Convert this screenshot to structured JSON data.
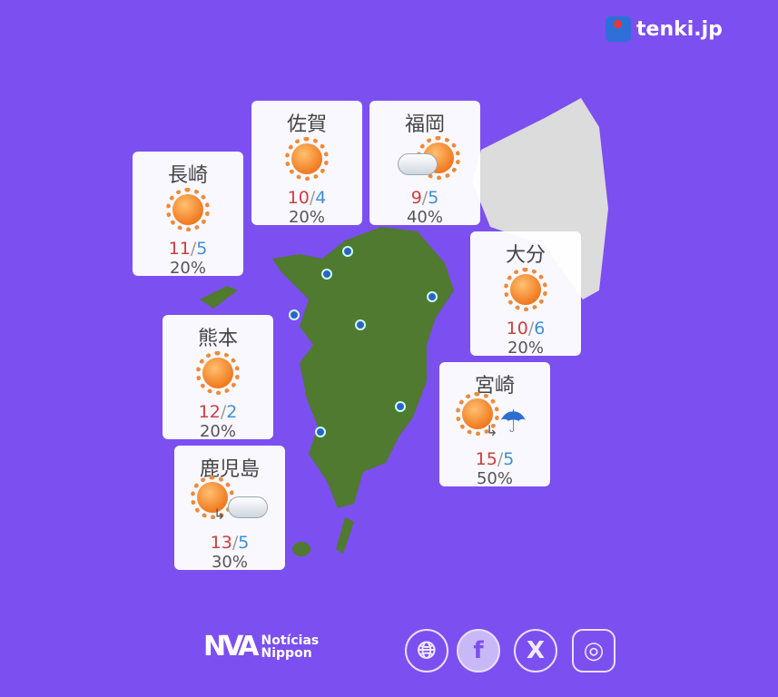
{
  "brand": {
    "logo_text": "tenki.jp"
  },
  "colors": {
    "background": "#7c4ff0",
    "high_temp": "#c9403f",
    "low_temp": "#3d8fdc"
  },
  "cities": [
    {
      "name": "長崎",
      "icon": "sunny",
      "high": "11",
      "low": "5",
      "precip": "20%"
    },
    {
      "name": "佐賀",
      "icon": "sunny",
      "high": "10",
      "low": "4",
      "precip": "20%"
    },
    {
      "name": "福岡",
      "icon": "cloudy-and-sunny",
      "high": "9",
      "low": "5",
      "precip": "40%"
    },
    {
      "name": "大分",
      "icon": "sunny",
      "high": "10",
      "low": "6",
      "precip": "20%"
    },
    {
      "name": "熊本",
      "icon": "sunny",
      "high": "12",
      "low": "2",
      "precip": "20%"
    },
    {
      "name": "宮崎",
      "icon": "sunny-then-rain",
      "high": "15",
      "low": "5",
      "precip": "50%"
    },
    {
      "name": "鹿児島",
      "icon": "sunny-then-cloudy",
      "high": "13",
      "low": "5",
      "precip": "30%"
    }
  ],
  "footer": {
    "brand_line1": "Notícias",
    "brand_line2": "Nippon",
    "social": [
      "globe-icon",
      "facebook-icon",
      "x-icon",
      "instagram-icon"
    ]
  }
}
